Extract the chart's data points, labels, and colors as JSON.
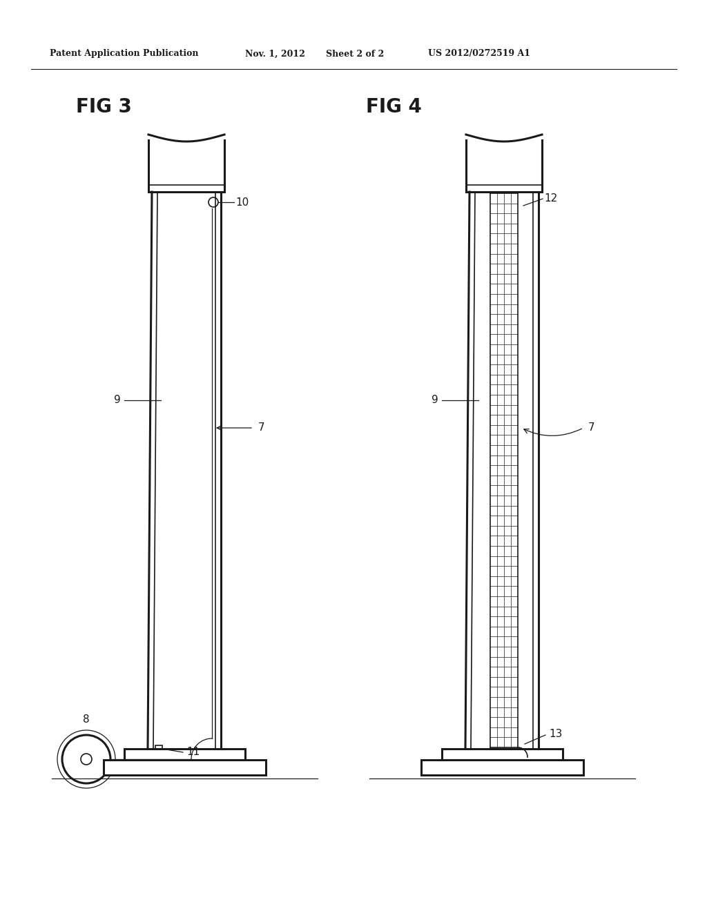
{
  "bg_color": "#ffffff",
  "line_color": "#1a1a1a",
  "header_text": "Patent Application Publication",
  "header_date": "Nov. 1, 2012",
  "header_sheet": "Sheet 2 of 2",
  "header_patent": "US 2012/0272519 A1",
  "fig3_label": "FIG 3",
  "fig4_label": "FIG 4",
  "figsize": [
    10.24,
    13.2
  ],
  "dpi": 100
}
